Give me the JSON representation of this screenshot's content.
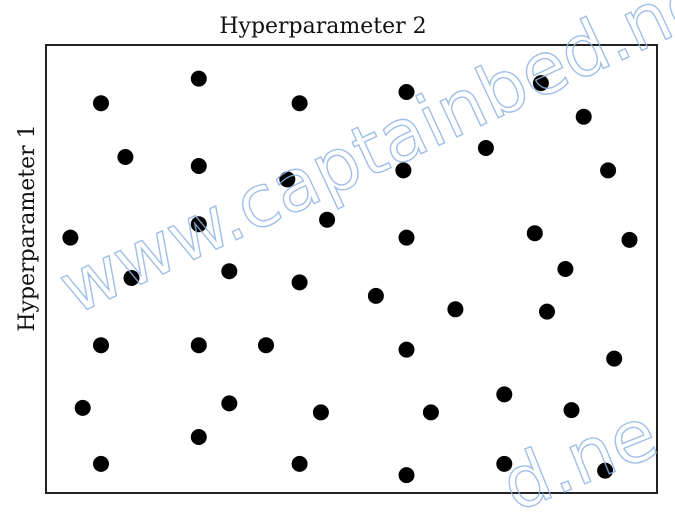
{
  "chart_data": {
    "type": "scatter",
    "title": "",
    "xlabel": "Hyperparameter 2",
    "ylabel": "Hyperparameter 1",
    "xlim": [
      0,
      100
    ],
    "ylim": [
      0,
      100
    ],
    "grid": false,
    "legend": "none",
    "x": [
      9,
      25,
      41.5,
      59,
      81,
      88,
      13,
      25,
      39.5,
      58.5,
      72,
      92,
      4,
      25,
      46,
      59,
      80,
      95.5,
      14,
      30,
      41.5,
      54,
      67,
      85,
      82,
      9,
      25,
      36,
      59,
      93,
      6,
      30,
      45,
      63,
      75,
      86,
      25,
      9,
      41.5,
      59,
      75,
      91.5
    ],
    "y": [
      87,
      92.5,
      87,
      89.5,
      91.5,
      84,
      75,
      73,
      70,
      72,
      77,
      72,
      57,
      60,
      61,
      57,
      58,
      56.5,
      48,
      49.5,
      47,
      44,
      41,
      50,
      40.5,
      33,
      33,
      33,
      32,
      30,
      19,
      20,
      18,
      18,
      22,
      18.5,
      12.5,
      6.5,
      6.5,
      4,
      6.5,
      5
    ]
  },
  "watermark": {
    "text": "www.captainbed.ne",
    "text2": "d.ne",
    "color": "#8fb4e3"
  }
}
